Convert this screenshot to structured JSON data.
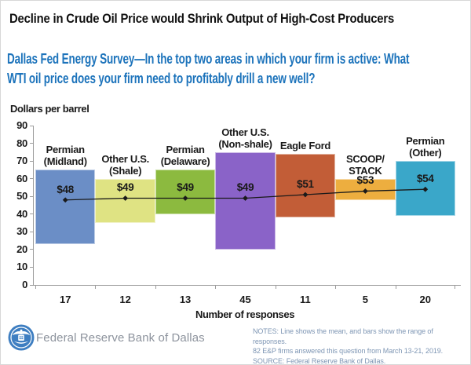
{
  "title": "Decline in Crude Oil Price would Shrink Output of High-Cost Producers",
  "subtitle": {
    "lines": [
      "Dallas Fed Energy Survey—In the top two areas in which your firm is active: What",
      "WTI oil price does your firm need to profitably drill a new well?"
    ],
    "color": "#1C73BB"
  },
  "chart_data": {
    "type": "bar",
    "subtype": "range-bars-with-mean-line",
    "title": "Dallas Fed Energy Survey—In the top two areas in which your firm is active: What WTI oil price does your firm need to profitably drill a new well?",
    "y_axis_title": "Dollars per barrel",
    "x_axis_title": "Number of responses",
    "ylim": [
      0,
      90
    ],
    "ytick_interval": 10,
    "grid": false,
    "legend": "none",
    "categories": [
      "Permian (Midland)",
      "Other U.S. (Shale)",
      "Permian (Delaware)",
      "Other U.S. (Non-shale)",
      "Eagle Ford",
      "SCOOP/STACK",
      "Permian (Other)"
    ],
    "responses": [
      17,
      12,
      13,
      45,
      11,
      5,
      20
    ],
    "series": [
      {
        "name": "Range of responses ($ per barrel)",
        "type": "bar-range",
        "low": [
          23,
          35,
          40,
          20,
          38,
          48,
          39
        ],
        "high": [
          65,
          60,
          65,
          75,
          74,
          60,
          70
        ]
      },
      {
        "name": "Mean ($ per barrel)",
        "type": "line",
        "values": [
          48,
          49,
          49,
          49,
          51,
          53,
          54
        ]
      }
    ],
    "bars": [
      {
        "name": "permian-midland",
        "label_lines": [
          "Permian",
          "(Midland)"
        ],
        "low": 23,
        "high": 65,
        "mean": 48,
        "mean_label": "$48",
        "responses": "17",
        "color": "#6B8EC6"
      },
      {
        "name": "other-us-shale",
        "label_lines": [
          "Other U.S.",
          "(Shale)"
        ],
        "low": 35,
        "high": 60,
        "mean": 49,
        "mean_label": "$49",
        "responses": "12",
        "color": "#DFE383"
      },
      {
        "name": "permian-delaware",
        "label_lines": [
          "Permian",
          "(Delaware)"
        ],
        "low": 40,
        "high": 65,
        "mean": 49,
        "mean_label": "$49",
        "responses": "13",
        "color": "#8CBA3F"
      },
      {
        "name": "other-us-nonshale",
        "label_lines": [
          "Other U.S.",
          "(Non-shale)"
        ],
        "low": 20,
        "high": 75,
        "mean": 49,
        "mean_label": "$49",
        "responses": "45",
        "color": "#8A63C8"
      },
      {
        "name": "eagle-ford",
        "label_lines": [
          "Eagle Ford"
        ],
        "low": 38,
        "high": 74,
        "mean": 51,
        "mean_label": "$51",
        "responses": "11",
        "color": "#C25D37"
      },
      {
        "name": "scoop-stack",
        "label_lines": [
          "SCOOP/",
          "STACK"
        ],
        "low": 48,
        "high": 60,
        "mean": 53,
        "mean_label": "$53",
        "responses": "5",
        "color": "#EDAE3F"
      },
      {
        "name": "permian-other",
        "label_lines": [
          "Permian",
          "(Other)"
        ],
        "low": 39,
        "high": 70,
        "mean": 54,
        "mean_label": "$54",
        "responses": "20",
        "color": "#3AA7C9"
      }
    ],
    "line_color": "#1A1A1A",
    "axis_color": "#9C9C9C",
    "text_color": "#1A1A1A"
  },
  "footer": {
    "logo_text": "Federal Reserve Bank of Dallas",
    "notes": [
      "NOTES: Line shows the mean, and bars show the range of responses.",
      "82 E&P firms answered this question from March 13-21, 2019.",
      "SOURCE: Federal Reserve Bank of Dallas."
    ]
  }
}
